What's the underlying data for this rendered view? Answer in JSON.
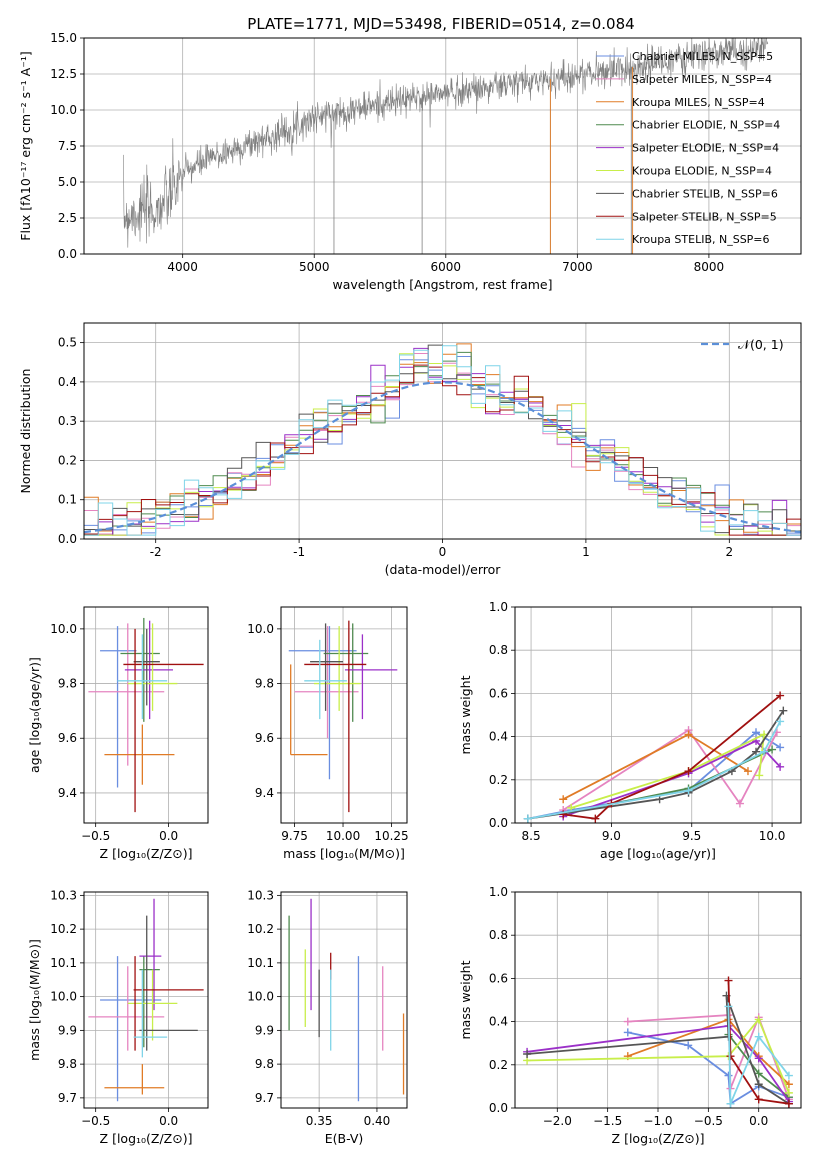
{
  "figure_title": "PLATE=1771, MJD=53498, FIBERID=0514, z=0.084",
  "colors": {
    "grey": "#808080",
    "orange": "#e07b26",
    "green": "#4f8a4f",
    "purple": "#9b30c8",
    "yellow": "#c8ee4a",
    "dark": "#555555",
    "red": "#a01010",
    "cyan": "#7fd4e8",
    "pink": "#e584c0",
    "blue": "#6a8ee0",
    "dashed": "#5b8fd8",
    "grid": "#b0b0b0"
  },
  "chart_data": [
    {
      "id": "spectrum",
      "type": "line",
      "xlabel": "wavelength [Angstrom, rest frame]",
      "ylabel": "Flux [fλ10⁻¹⁷ erg cm⁻² s⁻¹ A⁻¹]",
      "xlim": [
        3250,
        8700
      ],
      "ylim": [
        0,
        15
      ],
      "xticks": [
        4000,
        5000,
        6000,
        7000,
        8000
      ],
      "yticks": [
        0.0,
        2.5,
        5.0,
        7.5,
        10.0,
        12.5,
        15.0
      ],
      "ytick_labels": [
        "0.0",
        "2.5",
        "5.0",
        "7.5",
        "10.0",
        "12.5",
        "15.0"
      ],
      "data_range": [
        3550,
        8450
      ],
      "continuum": {
        "x": [
          3550,
          3700,
          3800,
          3900,
          4000,
          4200,
          4500,
          4800,
          5000,
          5500,
          6000,
          6500,
          7000,
          7500,
          8000,
          8450
        ],
        "y": [
          2.6,
          3.0,
          3.0,
          4.0,
          5.6,
          6.6,
          7.6,
          8.6,
          9.5,
          10.4,
          11.2,
          11.8,
          12.4,
          13.1,
          13.9,
          14.4
        ]
      },
      "spikes": [
        {
          "x": 5150,
          "y": 0
        },
        {
          "x": 5820,
          "y": 0
        },
        {
          "x": 6795,
          "y": 0
        },
        {
          "x": 7410,
          "y": 0
        }
      ],
      "legend_position": "right",
      "legend": [
        "Chabrier MILES, N_SSP=5",
        "Salpeter MILES, N_SSP=4",
        "Kroupa MILES, N_SSP=4",
        "Chabrier ELODIE, N_SSP=4",
        "Salpeter ELODIE, N_SSP=4",
        "Kroupa ELODIE, N_SSP=4",
        "Chabrier STELIB, N_SSP=6",
        "Salpeter STELIB, N_SSP=5",
        "Kroupa STELIB, N_SSP=6"
      ],
      "legend_colors": [
        "#6a8ee0",
        "#e584c0",
        "#e07b26",
        "#4f8a4f",
        "#9b30c8",
        "#c8ee4a",
        "#555555",
        "#a01010",
        "#7fd4e8"
      ]
    },
    {
      "id": "residuals",
      "type": "histogram",
      "xlabel": "(data-model)/error",
      "ylabel": "Normed distribution",
      "xlim": [
        -2.5,
        2.5
      ],
      "ylim": [
        0,
        0.55
      ],
      "xticks": [
        -2,
        -1,
        0,
        1,
        2
      ],
      "yticks": [
        0.0,
        0.1,
        0.2,
        0.3,
        0.4,
        0.5
      ],
      "ytick_labels": [
        "0.0",
        "0.1",
        "0.2",
        "0.3",
        "0.4",
        "0.5"
      ],
      "bin_width": 0.1,
      "legend_position": "top-right",
      "legend": [
        "𝒩(0, 1)"
      ],
      "series_colors": [
        "#6a8ee0",
        "#e584c0",
        "#e07b26",
        "#4f8a4f",
        "#9b30c8",
        "#c8ee4a",
        "#555555",
        "#a01010",
        "#7fd4e8"
      ]
    },
    {
      "id": "age_vs_Z",
      "type": "errorbar",
      "xlabel": "Z [log₁₀(Z/Z⊙)]",
      "ylabel": "age  [log₁₀(age/yr)]",
      "xlim": [
        -0.58,
        0.27
      ],
      "ylim": [
        9.29,
        10.08
      ],
      "xticks": [
        -0.5,
        0.0
      ],
      "xtick_labels": [
        "−0.5",
        "0.0"
      ],
      "yticks": [
        9.4,
        9.6,
        9.8,
        10.0
      ],
      "ytick_labels": [
        "9.4",
        "9.6",
        "9.8",
        "10.0"
      ],
      "points": [
        {
          "c": "#6a8ee0",
          "x": -0.35,
          "y": 9.92,
          "xe": [
            -0.47,
            -0.22
          ],
          "ye": [
            9.42,
            10.01
          ]
        },
        {
          "c": "#e584c0",
          "x": -0.28,
          "y": 9.77,
          "xe": [
            -0.55,
            -0.03
          ],
          "ye": [
            9.5,
            10.02
          ]
        },
        {
          "c": "#e07b26",
          "x": -0.18,
          "y": 9.54,
          "xe": [
            -0.44,
            0.04
          ],
          "ye": [
            9.43,
            9.65
          ]
        },
        {
          "c": "#4f8a4f",
          "x": -0.17,
          "y": 9.91,
          "xe": [
            -0.33,
            -0.06
          ],
          "ye": [
            9.66,
            10.04
          ]
        },
        {
          "c": "#9b30c8",
          "x": -0.13,
          "y": 9.85,
          "xe": [
            -0.3,
            0.03
          ],
          "ye": [
            9.67,
            10.03
          ]
        },
        {
          "c": "#c8ee4a",
          "x": -0.11,
          "y": 9.8,
          "xe": [
            -0.28,
            0.06
          ],
          "ye": [
            9.7,
            10.02
          ]
        },
        {
          "c": "#555555",
          "x": -0.15,
          "y": 9.88,
          "xe": [
            -0.24,
            -0.06
          ],
          "ye": [
            9.72,
            10.0
          ]
        },
        {
          "c": "#a01010",
          "x": -0.23,
          "y": 9.87,
          "xe": [
            -0.31,
            0.24
          ],
          "ye": [
            9.33,
            10.0
          ]
        },
        {
          "c": "#7fd4e8",
          "x": -0.18,
          "y": 9.81,
          "xe": [
            -0.35,
            -0.01
          ],
          "ye": [
            9.67,
            9.98
          ]
        }
      ]
    },
    {
      "id": "age_vs_mass",
      "type": "errorbar",
      "xlabel": "mass [log₁₀(M/M⊙)]",
      "ylabel": "",
      "xlim": [
        9.68,
        10.33
      ],
      "ylim": [
        9.29,
        10.08
      ],
      "xticks": [
        9.75,
        10.0,
        10.25
      ],
      "xtick_labels": [
        "9.75",
        "10.00",
        "10.25"
      ],
      "yticks": [
        9.4,
        9.6,
        9.8,
        10.0
      ],
      "ytick_labels": [
        "9.4",
        "9.6",
        "9.8",
        "10.0"
      ],
      "points": [
        {
          "c": "#6a8ee0",
          "x": 9.93,
          "y": 9.92,
          "xe": [
            9.72,
            10.07
          ],
          "ye": [
            9.45,
            10.01
          ]
        },
        {
          "c": "#e584c0",
          "x": 9.92,
          "y": 9.77,
          "xe": [
            9.75,
            10.08
          ],
          "ye": [
            9.6,
            10.01
          ]
        },
        {
          "c": "#e07b26",
          "x": 9.73,
          "y": 9.54,
          "xe": [
            9.73,
            9.92
          ],
          "ye": [
            9.54,
            9.87
          ]
        },
        {
          "c": "#4f8a4f",
          "x": 10.05,
          "y": 9.91,
          "xe": [
            9.9,
            10.13
          ],
          "ye": [
            9.66,
            10.02
          ]
        },
        {
          "c": "#9b30c8",
          "x": 10.1,
          "y": 9.85,
          "xe": [
            10.01,
            10.28
          ],
          "ye": [
            9.67,
            9.98
          ]
        },
        {
          "c": "#c8ee4a",
          "x": 9.98,
          "y": 9.8,
          "xe": [
            9.85,
            10.09
          ],
          "ye": [
            9.7,
            10.01
          ]
        },
        {
          "c": "#555555",
          "x": 9.91,
          "y": 9.88,
          "xe": [
            9.83,
            10.0
          ],
          "ye": [
            9.7,
            10.02
          ]
        },
        {
          "c": "#a01010",
          "x": 10.03,
          "y": 9.87,
          "xe": [
            9.8,
            10.12
          ],
          "ye": [
            9.33,
            10.03
          ]
        },
        {
          "c": "#7fd4e8",
          "x": 9.88,
          "y": 9.81,
          "xe": [
            9.8,
            10.02
          ],
          "ye": [
            9.67,
            9.96
          ]
        }
      ]
    },
    {
      "id": "mass_weight_vs_age",
      "type": "line",
      "xlabel": "age  [log₁₀(age/yr)]",
      "ylabel": "mass weight",
      "xlim": [
        8.4,
        10.18
      ],
      "ylim": [
        0,
        1
      ],
      "xticks": [
        8.5,
        9.0,
        9.5,
        10.0
      ],
      "xtick_labels": [
        "8.5",
        "9.0",
        "9.5",
        "10.0"
      ],
      "yticks": [
        0,
        0.2,
        0.4,
        0.6,
        0.8,
        1.0
      ],
      "ytick_labels": [
        "0.0",
        "0.2",
        "0.4",
        "0.6",
        "0.8",
        "1.0"
      ],
      "series": [
        {
          "c": "#6a8ee0",
          "x": [
            8.48,
            8.75,
            9.48,
            9.9,
            10.05
          ],
          "y": [
            0.02,
            0.06,
            0.15,
            0.42,
            0.35
          ]
        },
        {
          "c": "#e584c0",
          "x": [
            8.7,
            9.48,
            9.8,
            10.03
          ],
          "y": [
            0.06,
            0.43,
            0.09,
            0.42
          ]
        },
        {
          "c": "#e07b26",
          "x": [
            8.7,
            9.48,
            9.85
          ],
          "y": [
            0.11,
            0.41,
            0.24
          ]
        },
        {
          "c": "#4f8a4f",
          "x": [
            8.75,
            9.48,
            10.0
          ],
          "y": [
            0.05,
            0.16,
            0.34
          ]
        },
        {
          "c": "#9b30c8",
          "x": [
            8.7,
            9.48,
            9.9,
            10.05
          ],
          "y": [
            0.03,
            0.23,
            0.38,
            0.26
          ]
        },
        {
          "c": "#c8ee4a",
          "x": [
            8.75,
            9.48,
            9.95,
            9.92
          ],
          "y": [
            0.07,
            0.24,
            0.41,
            0.22
          ]
        },
        {
          "c": "#555555",
          "x": [
            8.48,
            9.3,
            9.48,
            9.75,
            9.9,
            10.07
          ],
          "y": [
            0.02,
            0.11,
            0.14,
            0.24,
            0.33,
            0.52
          ]
        },
        {
          "c": "#a01010",
          "x": [
            8.7,
            8.9,
            9.0,
            9.48,
            10.05
          ],
          "y": [
            0.04,
            0.02,
            0.09,
            0.24,
            0.59
          ]
        },
        {
          "c": "#7fd4e8",
          "x": [
            8.48,
            9.48,
            9.95,
            10.05
          ],
          "y": [
            0.02,
            0.15,
            0.33,
            0.47
          ]
        }
      ]
    },
    {
      "id": "mass_vs_Z",
      "type": "errorbar",
      "xlabel": "Z [log₁₀(Z/Z⊙)]",
      "ylabel": "mass [log₁₀(M/M⊙)]",
      "xlim": [
        -0.58,
        0.27
      ],
      "ylim": [
        9.67,
        10.31
      ],
      "xticks": [
        -0.5,
        0.0
      ],
      "xtick_labels": [
        "−0.5",
        "0.0"
      ],
      "yticks": [
        9.7,
        9.8,
        9.9,
        10.0,
        10.1,
        10.2,
        10.3
      ],
      "ytick_labels": [
        "9.7",
        "9.8",
        "9.9",
        "10.0",
        "10.1",
        "10.2",
        "10.3"
      ],
      "points": [
        {
          "c": "#6a8ee0",
          "x": -0.35,
          "y": 9.99,
          "xe": [
            -0.47,
            -0.05
          ],
          "ye": [
            9.69,
            10.12
          ]
        },
        {
          "c": "#e584c0",
          "x": -0.28,
          "y": 9.94,
          "xe": [
            -0.55,
            -0.03
          ],
          "ye": [
            9.84,
            10.09
          ]
        },
        {
          "c": "#e07b26",
          "x": -0.18,
          "y": 9.73,
          "xe": [
            -0.44,
            -0.03
          ],
          "ye": [
            9.71,
            9.8
          ]
        },
        {
          "c": "#4f8a4f",
          "x": -0.17,
          "y": 10.08,
          "xe": [
            -0.2,
            -0.06
          ],
          "ye": [
            9.85,
            10.12
          ]
        },
        {
          "c": "#9b30c8",
          "x": -0.1,
          "y": 10.12,
          "xe": [
            -0.2,
            -0.05
          ],
          "ye": [
            9.96,
            10.29
          ]
        },
        {
          "c": "#c8ee4a",
          "x": -0.11,
          "y": 9.98,
          "xe": [
            -0.28,
            0.06
          ],
          "ye": [
            9.87,
            10.08
          ]
        },
        {
          "c": "#555555",
          "x": -0.15,
          "y": 9.9,
          "xe": [
            -0.2,
            0.2
          ],
          "ye": [
            9.84,
            10.24
          ]
        },
        {
          "c": "#a01010",
          "x": -0.23,
          "y": 10.02,
          "xe": [
            -0.24,
            0.24
          ],
          "ye": [
            9.84,
            10.12
          ]
        },
        {
          "c": "#7fd4e8",
          "x": -0.18,
          "y": 9.88,
          "xe": [
            -0.24,
            -0.01
          ],
          "ye": [
            9.82,
            10.08
          ]
        }
      ]
    },
    {
      "id": "mass_vs_EBV",
      "type": "errorbar",
      "xlabel": "E(B-V)",
      "ylabel": "",
      "xlim": [
        0.317,
        0.426
      ],
      "ylim": [
        9.67,
        10.31
      ],
      "xticks": [
        0.35,
        0.4
      ],
      "xtick_labels": [
        "0.35",
        "0.40"
      ],
      "yticks": [
        9.7,
        9.8,
        9.9,
        10.0,
        10.1,
        10.2,
        10.3
      ],
      "ytick_labels": [
        "9.7",
        "9.8",
        "9.9",
        "10.0",
        "10.1",
        "10.2",
        "10.3"
      ],
      "vlines": [
        {
          "c": "#4f8a4f",
          "x": 0.324,
          "ye": [
            9.9,
            10.24
          ]
        },
        {
          "c": "#c8ee4a",
          "x": 0.338,
          "ye": [
            9.91,
            10.14
          ]
        },
        {
          "c": "#9b30c8",
          "x": 0.343,
          "ye": [
            9.96,
            10.29
          ]
        },
        {
          "c": "#555555",
          "x": 0.35,
          "ye": [
            9.88,
            10.08
          ]
        },
        {
          "c": "#a01010",
          "x": 0.36,
          "ye": [
            10.05,
            10.13
          ]
        },
        {
          "c": "#7fd4e8",
          "x": 0.36,
          "ye": [
            9.84,
            10.08
          ]
        },
        {
          "c": "#6a8ee0",
          "x": 0.384,
          "ye": [
            9.69,
            10.12
          ]
        },
        {
          "c": "#e584c0",
          "x": 0.405,
          "ye": [
            9.84,
            10.09
          ]
        },
        {
          "c": "#e07b26",
          "x": 0.423,
          "ye": [
            9.71,
            9.95
          ]
        }
      ]
    },
    {
      "id": "mass_weight_vs_Z",
      "type": "line",
      "xlabel": "Z [log₁₀(Z/Z⊙)]",
      "ylabel": "mass weight",
      "xlim": [
        -2.42,
        0.42
      ],
      "ylim": [
        0,
        1
      ],
      "xticks": [
        -2.0,
        -1.5,
        -1.0,
        -0.5,
        0.0
      ],
      "xtick_labels": [
        "−2.0",
        "−1.5",
        "−1.0",
        "−0.5",
        "0.0"
      ],
      "yticks": [
        0,
        0.2,
        0.4,
        0.6,
        0.8,
        1.0
      ],
      "ytick_labels": [
        "0.0",
        "0.2",
        "0.4",
        "0.6",
        "0.8",
        "1.0"
      ],
      "series": [
        {
          "c": "#6a8ee0",
          "x": [
            -1.3,
            -0.7,
            -0.3,
            -0.28,
            0.0,
            0.3
          ],
          "y": [
            0.35,
            0.29,
            0.15,
            0.02,
            0.1,
            0.05
          ]
        },
        {
          "c": "#e584c0",
          "x": [
            -1.3,
            -0.3,
            -0.28,
            0.0,
            0.3
          ],
          "y": [
            0.4,
            0.43,
            0.09,
            0.42,
            0.04
          ]
        },
        {
          "c": "#e07b26",
          "x": [
            -1.3,
            -0.3,
            0.0,
            0.3
          ],
          "y": [
            0.24,
            0.41,
            0.24,
            0.11
          ]
        },
        {
          "c": "#4f8a4f",
          "x": [
            -0.3,
            0.0,
            0.3
          ],
          "y": [
            0.34,
            0.16,
            0.05
          ]
        },
        {
          "c": "#9b30c8",
          "x": [
            -2.3,
            -0.3,
            0.0,
            0.3
          ],
          "y": [
            0.26,
            0.38,
            0.23,
            0.03
          ]
        },
        {
          "c": "#c8ee4a",
          "x": [
            -2.3,
            -0.3,
            0.0,
            0.3
          ],
          "y": [
            0.22,
            0.24,
            0.41,
            0.07
          ]
        },
        {
          "c": "#555555",
          "x": [
            -2.3,
            -0.3,
            -0.32,
            0.0,
            0.3
          ],
          "y": [
            0.25,
            0.33,
            0.52,
            0.11,
            0.02
          ]
        },
        {
          "c": "#a01010",
          "x": [
            -0.3,
            -0.28,
            0.0,
            0.3
          ],
          "y": [
            0.59,
            0.24,
            0.04,
            0.02
          ]
        },
        {
          "c": "#7fd4e8",
          "x": [
            -0.3,
            -0.28,
            0.0,
            0.3
          ],
          "y": [
            0.47,
            0.02,
            0.33,
            0.15
          ]
        }
      ]
    }
  ]
}
